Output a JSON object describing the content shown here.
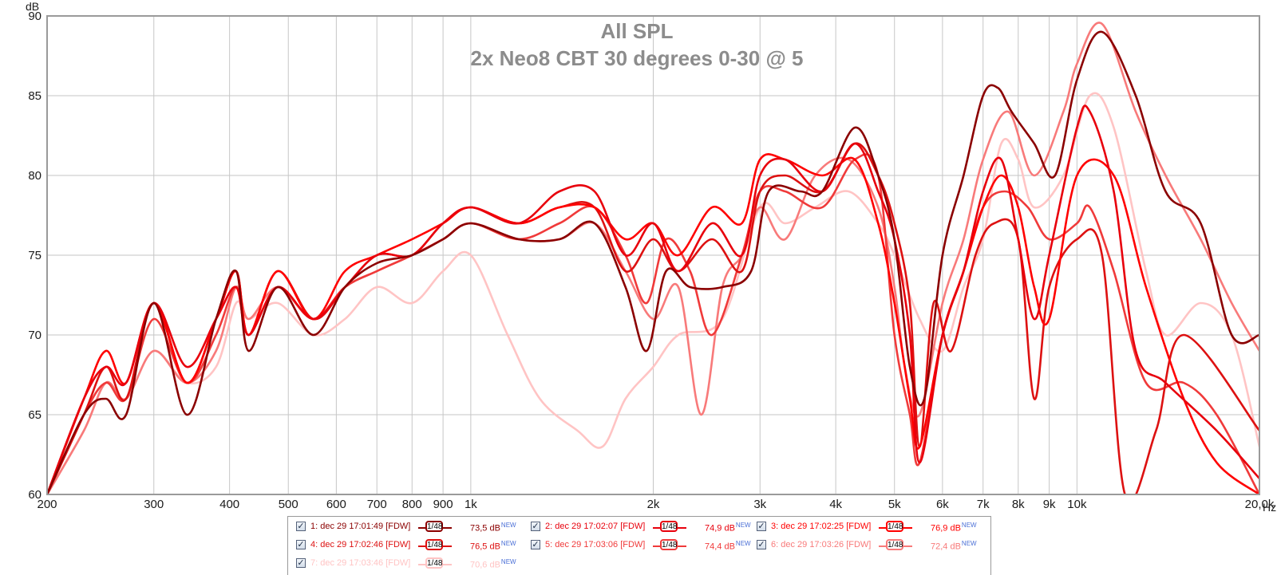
{
  "chart_data": {
    "type": "line",
    "title": "All SPL",
    "subtitle": "2x Neo8 CBT 30 degrees 0-30 @ 5",
    "ylabel": "dB",
    "xunit": "Hz",
    "xscale": "log",
    "xlim": [
      200,
      20000
    ],
    "ylim": [
      60,
      90
    ],
    "grid": true,
    "x_ticks": [
      {
        "value": 200,
        "label": "200"
      },
      {
        "value": 300,
        "label": "300"
      },
      {
        "value": 400,
        "label": "400"
      },
      {
        "value": 500,
        "label": "500"
      },
      {
        "value": 600,
        "label": "600"
      },
      {
        "value": 700,
        "label": "700"
      },
      {
        "value": 800,
        "label": "800"
      },
      {
        "value": 900,
        "label": "900"
      },
      {
        "value": 1000,
        "label": "1k"
      },
      {
        "value": 2000,
        "label": "2k"
      },
      {
        "value": 3000,
        "label": "3k"
      },
      {
        "value": 4000,
        "label": "4k"
      },
      {
        "value": 5000,
        "label": "5k"
      },
      {
        "value": 6000,
        "label": "6k"
      },
      {
        "value": 7000,
        "label": "7k"
      },
      {
        "value": 8000,
        "label": "8k"
      },
      {
        "value": 9000,
        "label": "9k"
      },
      {
        "value": 10000,
        "label": "10k"
      },
      {
        "value": 20000,
        "label": "20,0k"
      }
    ],
    "y_ticks": [
      {
        "value": 60,
        "label": "60"
      },
      {
        "value": 65,
        "label": "65"
      },
      {
        "value": 70,
        "label": "70"
      },
      {
        "value": 75,
        "label": "75"
      },
      {
        "value": 80,
        "label": "80"
      },
      {
        "value": 85,
        "label": "85"
      },
      {
        "value": 90,
        "label": "90"
      }
    ],
    "series": [
      {
        "name": "1: dec 29 17:01:49 [FDW]",
        "color": "#8b0000",
        "x": [
          200,
          230,
          250,
          270,
          300,
          340,
          380,
          410,
          430,
          480,
          550,
          620,
          700,
          800,
          900,
          1000,
          1200,
          1400,
          1600,
          1800,
          1950,
          2100,
          2300,
          2600,
          2900,
          3100,
          3500,
          3800,
          4300,
          4700,
          5000,
          5300,
          5600,
          6000,
          6500,
          7000,
          7400,
          7800,
          8500,
          9200,
          10000,
          11000,
          12500,
          14000,
          16000,
          18000,
          20000
        ],
        "y": [
          60,
          65,
          66,
          65,
          72,
          65,
          71,
          74,
          69,
          73,
          70,
          73,
          74.5,
          75,
          76,
          77,
          76,
          76,
          77,
          73,
          69,
          74,
          73,
          73,
          74,
          79,
          79,
          79,
          83,
          80,
          76,
          68,
          66,
          75,
          80,
          85,
          85.5,
          84,
          82,
          80,
          86,
          89,
          85,
          79,
          77,
          70,
          70
        ]
      },
      {
        "name": "2: dec 29 17:02:07 [FDW]",
        "color": "#e8000c",
        "x": [
          200,
          230,
          250,
          270,
          300,
          340,
          380,
          410,
          430,
          480,
          550,
          620,
          700,
          800,
          900,
          1000,
          1200,
          1400,
          1600,
          1800,
          2000,
          2200,
          2500,
          2800,
          3000,
          3300,
          3800,
          4300,
          4700,
          5000,
          5300,
          5500,
          6000,
          6500,
          7000,
          7500,
          8000,
          8500,
          9000,
          10000,
          10500,
          11500,
          12500,
          14000,
          17000,
          20000
        ],
        "y": [
          60,
          66,
          68,
          67,
          72,
          68,
          71,
          73,
          70,
          73,
          71,
          73,
          75,
          75,
          77,
          78,
          77,
          79,
          79,
          75,
          77,
          74,
          77,
          75,
          80,
          81,
          79,
          82,
          79,
          76,
          70,
          62,
          70,
          74,
          79,
          81,
          76,
          71,
          75,
          83,
          84,
          79,
          69,
          67,
          64,
          61
        ]
      },
      {
        "name": "3: dec 29 17:02:25 [FDW]",
        "color": "#ff0000",
        "x": [
          200,
          230,
          250,
          270,
          300,
          340,
          380,
          410,
          430,
          480,
          550,
          620,
          700,
          800,
          900,
          1000,
          1200,
          1400,
          1600,
          1800,
          2000,
          2200,
          2500,
          2800,
          3000,
          3300,
          3800,
          4300,
          4700,
          5000,
          5300,
          5500,
          6000,
          6500,
          7000,
          7500,
          8000,
          8500,
          9000,
          10000,
          11500,
          13000,
          15000,
          17000,
          20000
        ],
        "y": [
          60,
          66,
          69,
          67,
          72,
          67,
          71,
          74,
          70,
          74,
          71,
          74,
          75,
          76,
          77,
          78,
          77,
          78,
          78,
          76,
          77,
          75,
          78,
          77,
          81,
          81,
          80,
          81,
          77,
          72,
          66,
          63,
          70,
          74,
          78,
          80,
          78,
          73,
          71,
          80,
          80,
          73,
          66,
          62,
          60
        ]
      },
      {
        "name": "4: dec 29 17:02:46 [FDW]",
        "color": "#dd1111",
        "x": [
          200,
          230,
          250,
          270,
          300,
          340,
          380,
          410,
          430,
          480,
          550,
          620,
          700,
          800,
          900,
          1000,
          1200,
          1400,
          1600,
          1800,
          2000,
          2200,
          2500,
          2800,
          3000,
          3300,
          3800,
          4300,
          4700,
          5000,
          5300,
          5500,
          5800,
          6200,
          6800,
          7300,
          8000,
          8500,
          9000,
          10000,
          11000,
          12000,
          13500,
          15000,
          20000
        ],
        "y": [
          60,
          65,
          68,
          66,
          72,
          67,
          71,
          74,
          70,
          74,
          71,
          73,
          75,
          75,
          77,
          78,
          77,
          78,
          78,
          74,
          76,
          74,
          76,
          74,
          79,
          80,
          79,
          82,
          80,
          77,
          72,
          63,
          72,
          69,
          75,
          77,
          76,
          66,
          73,
          76,
          75,
          60,
          64,
          70,
          64
        ]
      },
      {
        "name": "5: dec 29 17:03:06 [FDW]",
        "color": "#f03a3a",
        "x": [
          200,
          230,
          250,
          270,
          300,
          340,
          380,
          410,
          430,
          480,
          550,
          620,
          700,
          800,
          900,
          1000,
          1200,
          1400,
          1600,
          1800,
          1950,
          2100,
          2300,
          2500,
          2800,
          3000,
          3300,
          3800,
          4300,
          4700,
          5000,
          5300,
          5500,
          6000,
          6500,
          7000,
          7600,
          8300,
          9000,
          10000,
          10500,
          11500,
          13000,
          15000,
          17000,
          20000
        ],
        "y": [
          60,
          65,
          67,
          66,
          71,
          67,
          70,
          73,
          70,
          73,
          71,
          73,
          74,
          75,
          76,
          77,
          76,
          77,
          78,
          75,
          72,
          76,
          74,
          70,
          75,
          79,
          79,
          78,
          81,
          80,
          70,
          65,
          62,
          70,
          74,
          78,
          79,
          78,
          76,
          77,
          78,
          74,
          67,
          67,
          65,
          60
        ]
      },
      {
        "name": "6: dec 29 17:03:26 [FDW]",
        "color": "#f87a7a",
        "x": [
          200,
          230,
          250,
          270,
          300,
          340,
          380,
          410,
          430,
          480,
          550,
          620,
          700,
          800,
          900,
          1000,
          1200,
          1400,
          1600,
          1800,
          2000,
          2200,
          2400,
          2600,
          2800,
          3000,
          3300,
          3700,
          4200,
          4700,
          5000,
          5200,
          5500,
          6000,
          6500,
          7000,
          7700,
          8500,
          9500,
          10000,
          11000,
          12500,
          14000,
          16000,
          18000,
          20000
        ],
        "y": [
          60,
          64,
          67,
          66,
          69,
          67,
          69,
          73,
          71,
          73,
          71,
          73,
          74,
          75,
          76,
          77,
          76,
          76,
          77,
          74,
          71,
          73,
          65,
          73,
          75,
          78,
          76,
          80,
          81,
          78,
          73,
          68,
          65,
          72,
          76,
          81,
          84,
          80,
          84,
          87,
          89.5,
          84,
          80,
          76,
          72,
          69
        ]
      },
      {
        "name": "7: dec 29 17:03:46 [FDW]",
        "color": "#ffc4c4",
        "x": [
          200,
          230,
          250,
          270,
          300,
          340,
          380,
          410,
          430,
          480,
          550,
          620,
          700,
          800,
          900,
          1000,
          1150,
          1300,
          1500,
          1650,
          1800,
          2000,
          2200,
          2600,
          3000,
          3300,
          3700,
          4200,
          4700,
          5000,
          5500,
          6000,
          6500,
          7000,
          7500,
          8000,
          8500,
          9500,
          10500,
          11500,
          13000,
          14000,
          16000,
          18000,
          20000
        ],
        "y": [
          60,
          64,
          67,
          66,
          69,
          67,
          68,
          72,
          71,
          72,
          70,
          71,
          73,
          72,
          74,
          75,
          70,
          66,
          64,
          63,
          66,
          68,
          70,
          71,
          78,
          77,
          78,
          79,
          77,
          75,
          71,
          69,
          73,
          76,
          82,
          81,
          78,
          80,
          85,
          83,
          74,
          70,
          72,
          70,
          63
        ]
      }
    ]
  },
  "legend": {
    "items": [
      {
        "label": "1: dec 29 17:01:49 [FDW]",
        "smoothing": "1/48",
        "level": "73,5 dB",
        "new": "NEW"
      },
      {
        "label": "2: dec 29 17:02:07 [FDW]",
        "smoothing": "1/48",
        "level": "74,9 dB",
        "new": "NEW"
      },
      {
        "label": "3: dec 29 17:02:25 [FDW]",
        "smoothing": "1/48",
        "level": "76,9 dB",
        "new": "NEW"
      },
      {
        "label": "4: dec 29 17:02:46 [FDW]",
        "smoothing": "1/48",
        "level": "76,5 dB",
        "new": "NEW"
      },
      {
        "label": "5: dec 29 17:03:06 [FDW]",
        "smoothing": "1/48",
        "level": "74,4 dB",
        "new": "NEW"
      },
      {
        "label": "6: dec 29 17:03:26 [FDW]",
        "smoothing": "1/48",
        "level": "72,4 dB",
        "new": "NEW"
      },
      {
        "label": "7: dec 29 17:03:46 [FDW]",
        "smoothing": "1/48",
        "level": "70,6 dB",
        "new": "NEW"
      }
    ]
  }
}
